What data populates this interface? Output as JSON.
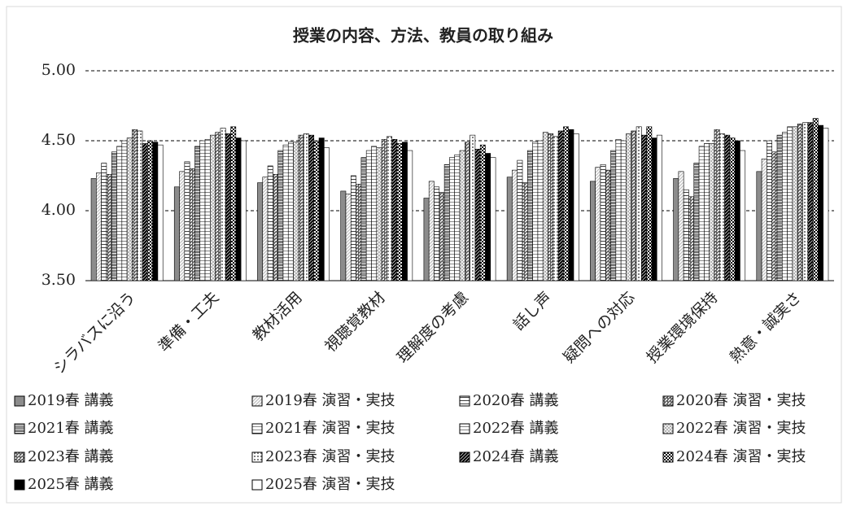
{
  "chart_data": {
    "type": "bar",
    "title": "授業の内容、方法、教員の取り組み",
    "categories": [
      "シラバスに沿う",
      "準備・工夫",
      "教材活用",
      "視聴覚教材",
      "理解度の考慮",
      "話し声",
      "疑問への対応",
      "授業環境保持",
      "熱意・誠実さ"
    ],
    "ylim": [
      3.5,
      5.0
    ],
    "yticks": [
      {
        "value": 3.5,
        "label": "3.50"
      },
      {
        "value": 4.0,
        "label": "4.00"
      },
      {
        "value": 4.5,
        "label": "4.50"
      },
      {
        "value": 5.0,
        "label": "5.00"
      }
    ],
    "grid": true,
    "legend": "bottom",
    "series": [
      {
        "name": "2019春 講義",
        "color": "#8c8c8c",
        "pattern": "solid",
        "values": [
          4.23,
          4.17,
          4.2,
          4.14,
          4.09,
          4.24,
          4.21,
          4.23,
          4.28
        ]
      },
      {
        "name": "2019春 演習・実技",
        "color": "#bfbfbf",
        "pattern": "diag",
        "values": [
          4.27,
          4.28,
          4.24,
          4.12,
          4.21,
          4.29,
          4.31,
          4.28,
          4.37
        ]
      },
      {
        "name": "2020春 講義",
        "color": "#404040",
        "pattern": "hline",
        "values": [
          4.34,
          4.35,
          4.32,
          4.25,
          4.17,
          4.36,
          4.33,
          4.15,
          4.5
        ]
      },
      {
        "name": "2020春 演習・実技",
        "color": "#595959",
        "pattern": "halfdiag",
        "values": [
          4.26,
          4.3,
          4.26,
          4.19,
          4.13,
          4.2,
          4.29,
          4.1,
          4.42
        ]
      },
      {
        "name": "2021春 講義",
        "color": "#595959",
        "pattern": "hdense",
        "values": [
          4.42,
          4.46,
          4.43,
          4.38,
          4.33,
          4.43,
          4.43,
          4.34,
          4.54
        ]
      },
      {
        "name": "2021春 演習・実技",
        "color": "#404040",
        "pattern": "corner",
        "values": [
          4.46,
          4.5,
          4.47,
          4.43,
          4.38,
          4.49,
          4.51,
          4.46,
          4.56
        ]
      },
      {
        "name": "2022春 講義",
        "color": "#808080",
        "pattern": "hline",
        "values": [
          4.5,
          4.51,
          4.49,
          4.46,
          4.4,
          4.5,
          4.5,
          4.48,
          4.6
        ]
      },
      {
        "name": "2022春 演習・実技",
        "color": "#a6a6a6",
        "pattern": "cross",
        "values": [
          4.52,
          4.54,
          4.49,
          4.45,
          4.43,
          4.56,
          4.55,
          4.48,
          4.6
        ]
      },
      {
        "name": "2023春 講義",
        "color": "#595959",
        "pattern": "halfdiag",
        "values": [
          4.58,
          4.56,
          4.54,
          4.51,
          4.49,
          4.55,
          4.57,
          4.58,
          4.62
        ]
      },
      {
        "name": "2023春 演習・実技",
        "color": "#808080",
        "pattern": "dots",
        "values": [
          4.57,
          4.59,
          4.55,
          4.53,
          4.54,
          4.53,
          4.6,
          4.55,
          4.63
        ]
      },
      {
        "name": "2024春 講義",
        "color": "#000000",
        "pattern": "thickdiag",
        "values": [
          4.48,
          4.55,
          4.54,
          4.51,
          4.44,
          4.57,
          4.54,
          4.54,
          4.63
        ]
      },
      {
        "name": "2024春 演習・実技",
        "color": "#000000",
        "pattern": "checker",
        "values": [
          4.5,
          4.6,
          4.5,
          4.48,
          4.47,
          4.6,
          4.6,
          4.52,
          4.66
        ]
      },
      {
        "name": "2025春 講義",
        "color": "#000000",
        "pattern": "solid",
        "values": [
          4.49,
          4.52,
          4.52,
          4.49,
          4.41,
          4.58,
          4.52,
          4.5,
          4.61
        ]
      },
      {
        "name": "2025春 演習・実技",
        "color": "#ffffff",
        "pattern": "solid",
        "values": [
          4.47,
          4.5,
          4.45,
          4.43,
          4.38,
          4.55,
          4.54,
          4.43,
          4.59
        ]
      }
    ]
  }
}
